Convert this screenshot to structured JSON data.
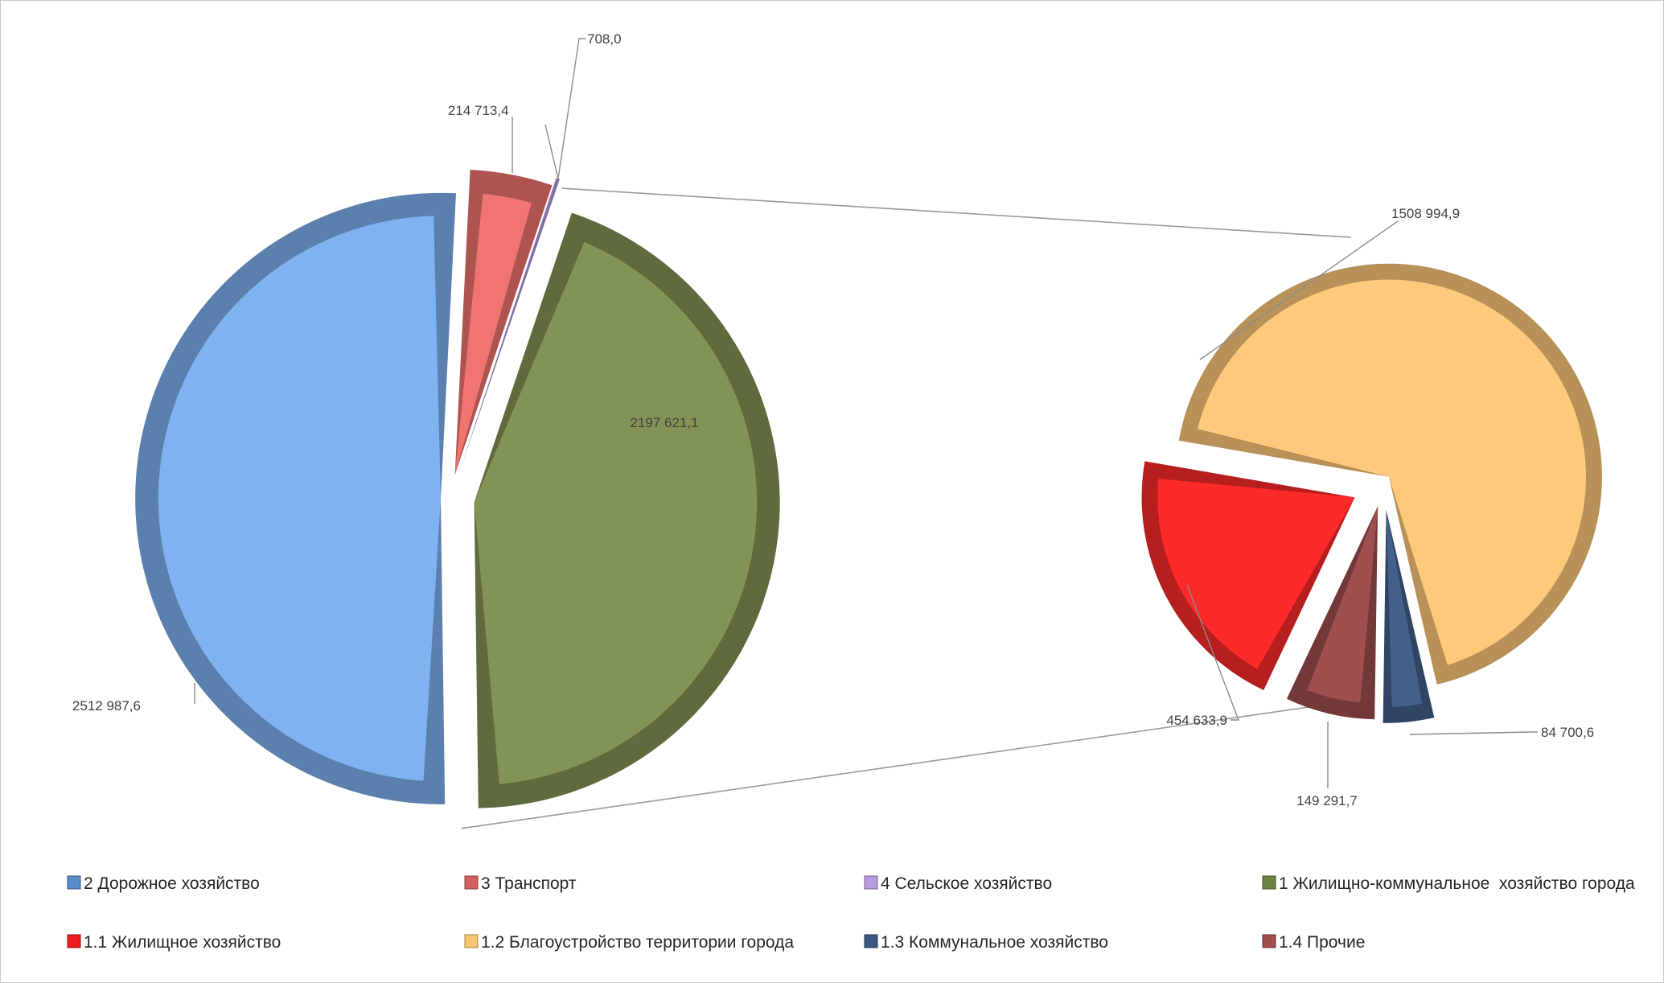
{
  "chart_data": {
    "type": "pie",
    "subtype": "pie-of-pie",
    "title": "",
    "legend_position": "bottom",
    "main_pie": {
      "series": [
        {
          "name": "2 Дорожное хозяйство",
          "value": 2512987.6,
          "label": "2512 987,6",
          "color": "#7fb2f0"
        },
        {
          "name": "3 Транспорт",
          "value": 214713.4,
          "label": "214 713,4",
          "color": "#f07470"
        },
        {
          "name": "4 Сельское хозяйство",
          "value": 708.0,
          "label": "708,0",
          "color": "#b79ce0"
        },
        {
          "name": "1 Жилищно-коммунальное  хозяйство города",
          "value": 2197621.1,
          "label": "2197 621,1",
          "color": "#829455"
        }
      ]
    },
    "secondary_pie": {
      "source": "1 Жилищно-коммунальное  хозяйство города",
      "series": [
        {
          "name": "1.2 Благоустройство территории города",
          "value": 1508994.9,
          "label": "1508 994,9",
          "color": "#fec97a"
        },
        {
          "name": "1.3 Коммунальное хозяйство",
          "value": 84700.6,
          "label": "84 700,6",
          "color": "#426089"
        },
        {
          "name": "1.4 Прочие",
          "value": 149291.7,
          "label": "149 291,7",
          "color": "#a04f4f"
        },
        {
          "name": "1.1 Жилищное хозяйство",
          "value": 454633.9,
          "label": "454 633,9",
          "color": "#fe2a2a"
        }
      ]
    },
    "legend": [
      {
        "name": "2 Дорожное хозяйство",
        "color": "#5b8bc8"
      },
      {
        "name": "3 Транспорт",
        "color": "#d06060"
      },
      {
        "name": "4 Сельское хозяйство",
        "color": "#b79ce0"
      },
      {
        "name": "1 Жилищно-коммунальное  хозяйство города",
        "color": "#6f8045"
      },
      {
        "name": "1.1 Жилищное хозяйство",
        "color": "#ee1c1c"
      },
      {
        "name": "1.2 Благоустройство территории города",
        "color": "#f7c56e"
      },
      {
        "name": "1.3 Коммунальное хозяйство",
        "color": "#3a5880"
      },
      {
        "name": "1.4 Прочие",
        "color": "#a04f4f"
      }
    ]
  }
}
